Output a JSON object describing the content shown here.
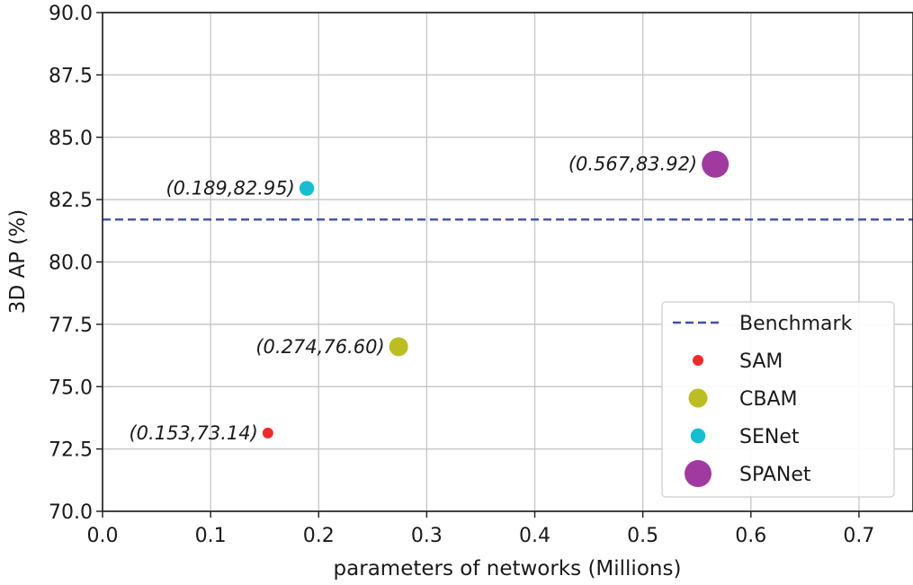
{
  "chart_data": {
    "type": "scatter",
    "title": "",
    "xlabel": "parameters of networks (Millions)",
    "ylabel": "3D AP (%)",
    "xlim": [
      0.0,
      0.75
    ],
    "ylim": [
      70.0,
      90.0
    ],
    "xticks": [
      "0.0",
      "0.1",
      "0.2",
      "0.3",
      "0.4",
      "0.5",
      "0.6",
      "0.7"
    ],
    "yticks": [
      "70.0",
      "72.5",
      "75.0",
      "77.5",
      "80.0",
      "82.5",
      "85.0",
      "87.5",
      "90.0"
    ],
    "grid": true,
    "legend_position": "bottom-right",
    "benchmark": {
      "name": "Benchmark",
      "y": 81.7,
      "color": "#3f4fa8",
      "style": "dashed"
    },
    "series": [
      {
        "name": "SAM",
        "x": 0.153,
        "y": 73.14,
        "label": "(0.153,73.14)",
        "color": "#ee2b2b",
        "size": 1
      },
      {
        "name": "CBAM",
        "x": 0.274,
        "y": 76.6,
        "label": "(0.274,76.60)",
        "color": "#bcbd22",
        "size": 2
      },
      {
        "name": "SENet",
        "x": 0.189,
        "y": 82.95,
        "label": "(0.189,82.95)",
        "color": "#17becf",
        "size": 1.5
      },
      {
        "name": "SPANet",
        "x": 0.567,
        "y": 83.92,
        "label": "(0.567,83.92)",
        "color": "#a03aa0",
        "size": 3
      }
    ]
  }
}
